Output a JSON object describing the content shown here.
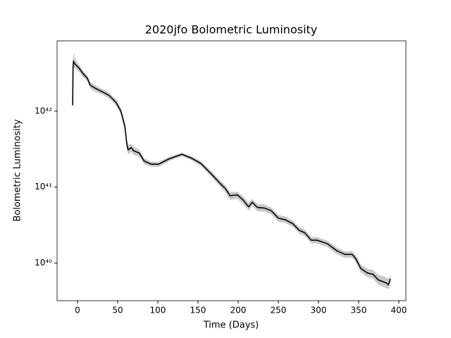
{
  "chart_data": {
    "type": "line",
    "title": "2020jfo Bolometric Luminosity",
    "x_label": "Time (Days)",
    "y_label": "Bolometric Luminosity",
    "yscale": "log",
    "color": "#000000",
    "x": [
      -6,
      -5.5,
      -5,
      -2.6,
      1.8,
      7,
      12.3,
      15.8,
      22,
      30.7,
      39.5,
      48,
      54,
      59,
      61.4,
      63,
      67,
      70,
      77,
      83,
      92,
      101,
      114,
      130,
      142,
      153.5,
      167,
      180,
      184,
      190,
      199,
      206,
      213,
      217.5,
      224,
      232.5,
      241,
      250,
      259,
      268,
      276,
      283,
      291,
      298,
      311,
      323,
      333,
      342,
      346.5,
      352.6,
      361,
      368,
      374.5,
      384,
      387,
      389.5
    ],
    "values": [
      1.19e+42,
      3.8e+42,
      4.5e+42,
      4.1e+42,
      3.7e+42,
      3.1e+42,
      2.7e+42,
      2.2e+42,
      2e+42,
      1.8e+42,
      1.6e+42,
      1.3e+42,
      1e+42,
      6.3e+41,
      3.7e+41,
      3.1e+41,
      3.3e+41,
      3e+41,
      2.8e+41,
      2.2e+41,
      2e+41,
      2e+41,
      2.35e+41,
      2.7e+41,
      2.4e+41,
      2.05e+41,
      1.47e+41,
      1.05e+41,
      9.6e+40,
      7.7e+40,
      7.9e+40,
      6.8e+40,
      5.5e+40,
      6.3e+40,
      5.4e+40,
      5.3e+40,
      4.9e+40,
      3.9e+40,
      3.7e+40,
      3.3e+40,
      2.7e+40,
      2.5e+40,
      2e+40,
      2e+40,
      1.8e+40,
      1.45e+40,
      1.3e+40,
      1.3e+40,
      1.14e+40,
      8.5e+39,
      7.4e+39,
      7.1e+39,
      6e+39,
      5.5e+39,
      5.2e+39,
      6.2e+39
    ],
    "band": {
      "color": "#bbbbbb",
      "upper": [
        1.5e+42,
        5e+42,
        5.8e+42,
        4.8e+42,
        4.1e+42,
        3.4e+42,
        2.95e+42,
        2.4e+42,
        2.2e+42,
        1.95e+42,
        1.75e+42,
        1.42e+42,
        1.1e+42,
        7e+41,
        4.2e+41,
        3.6e+41,
        3.7e+41,
        3.4e+41,
        3.1e+41,
        2.4e+41,
        2.15e+41,
        2.15e+41,
        2.5e+41,
        2.85e+41,
        2.55e+41,
        2.2e+41,
        1.6e+41,
        1.15e+41,
        1.06e+41,
        8.6e+40,
        8.7e+40,
        7.6e+40,
        6.2e+40,
        7e+40,
        6e+40,
        5.9e+40,
        5.4e+40,
        4.3e+40,
        4.1e+40,
        3.6e+40,
        3e+40,
        2.75e+40,
        2.2e+40,
        2.2e+40,
        1.98e+40,
        1.6e+40,
        1.43e+40,
        1.43e+40,
        1.27e+40,
        9.6e+39,
        8.4e+39,
        8.1e+39,
        7e+39,
        6.5e+39,
        6.2e+39,
        7e+39
      ],
      "lower": [
        8e+41,
        3e+42,
        3.8e+42,
        3.6e+42,
        3.3e+42,
        2.8e+42,
        2.45e+42,
        2e+42,
        1.8e+42,
        1.65e+42,
        1.46e+42,
        1.18e+42,
        9e+41,
        5.6e+41,
        3.2e+41,
        2.7e+41,
        2.9e+41,
        2.65e+41,
        2.5e+41,
        2e+41,
        1.85e+41,
        1.85e+41,
        2.2e+41,
        2.55e+41,
        2.25e+41,
        1.9e+41,
        1.35e+41,
        9.5e+40,
        8.6e+40,
        6.8e+40,
        7e+40,
        6e+40,
        4.9e+40,
        5.6e+40,
        4.8e+40,
        4.75e+40,
        4.4e+40,
        3.5e+40,
        3.35e+40,
        3e+40,
        2.45e+40,
        2.25e+40,
        1.82e+40,
        1.82e+40,
        1.63e+40,
        1.3e+40,
        1.17e+40,
        1.17e+40,
        1.02e+40,
        7.5e+39,
        6.5e+39,
        6.2e+39,
        5.2e+39,
        4.7e+39,
        4.5e+39,
        5.5e+39
      ]
    },
    "xlim": [
      -25.4,
      408.8
    ],
    "xticks": [
      0,
      50,
      100,
      150,
      200,
      250,
      300,
      350,
      400
    ],
    "ylim": [
      3.2e+39,
      8.4e+42
    ],
    "yticks": [
      {
        "value": 1e+40,
        "label": "10⁴⁰"
      },
      {
        "value": 1e+41,
        "label": "10⁴¹"
      },
      {
        "value": 1e+42,
        "label": "10⁴²"
      }
    ]
  }
}
